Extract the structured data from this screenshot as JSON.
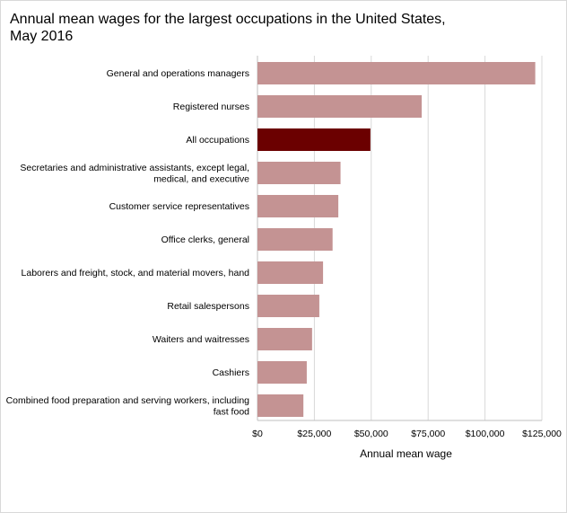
{
  "chart_data": {
    "type": "bar",
    "orientation": "horizontal",
    "title_lines": [
      "Annual mean wages for the largest occupations in the United States,",
      "May 2016"
    ],
    "xlabel": "Annual mean wage",
    "ylabel": "",
    "xlim": [
      0,
      125000
    ],
    "x_ticks": [
      0,
      25000,
      50000,
      75000,
      100000,
      125000
    ],
    "x_tick_labels": [
      "$0",
      "$25,000",
      "$50,000",
      "$75,000",
      "$100,000",
      "$125,000"
    ],
    "grid": "vertical",
    "categories": [
      [
        "General and operations managers"
      ],
      [
        "Registered nurses"
      ],
      [
        "All occupations"
      ],
      [
        "Secretaries and administrative assistants, except legal,",
        "medical, and executive"
      ],
      [
        "Customer service representatives"
      ],
      [
        "Office clerks, general"
      ],
      [
        "Laborers and freight, stock, and material movers, hand"
      ],
      [
        "Retail salespersons"
      ],
      [
        "Waiters and waitresses"
      ],
      [
        "Cashiers"
      ],
      [
        "Combined food preparation and serving workers, including",
        "fast food"
      ]
    ],
    "values": [
      122090,
      72180,
      49630,
      36500,
      35530,
      33010,
      28820,
      27180,
      24000,
      21660,
      20180
    ],
    "colors": {
      "default": "#c49393",
      "highlight": "#6b0000",
      "highlight_index": 2,
      "grid": "#d9d9d9",
      "axis": "#bfbfbf"
    }
  }
}
